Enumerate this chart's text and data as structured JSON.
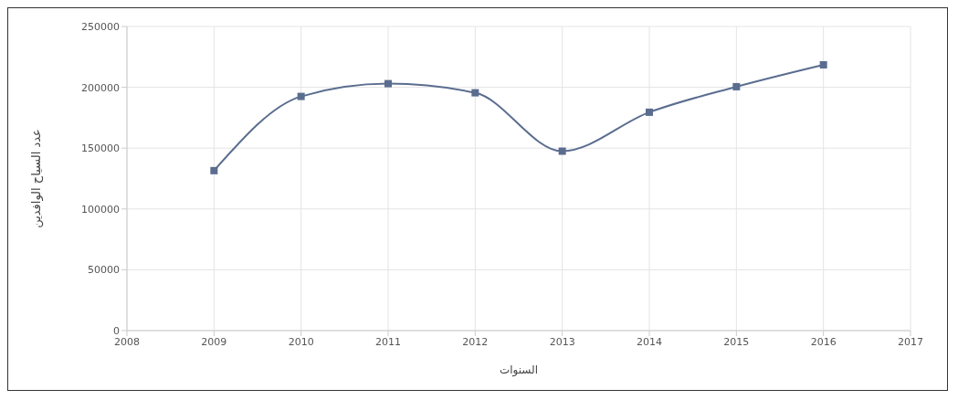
{
  "chart_data": {
    "type": "line",
    "xlabel": "السنوات",
    "ylabel": "عدد السياح الوافدين",
    "x": [
      2009,
      2010,
      2011,
      2012,
      2013,
      2014,
      2015,
      2016
    ],
    "series": [
      {
        "color": "#5a6d8f",
        "values": [
          131500,
          192500,
          203000,
          195500,
          147500,
          179500,
          200500,
          218500
        ]
      }
    ],
    "xlim": [
      2008,
      2017
    ],
    "xticks": [
      2008,
      2009,
      2010,
      2011,
      2012,
      2013,
      2014,
      2015,
      2016,
      2017
    ],
    "ylim": [
      0,
      250000
    ],
    "yticks": [
      0,
      50000,
      100000,
      150000,
      200000,
      250000
    ],
    "grid": true,
    "marker": "square",
    "line_style": "solid"
  }
}
